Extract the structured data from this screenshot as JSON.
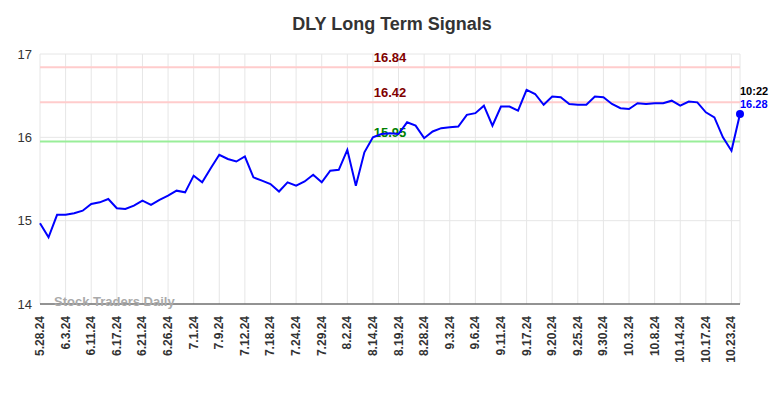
{
  "chart_data": {
    "type": "line",
    "title": "DLY Long Term Signals",
    "watermark": "Stock Traders Daily",
    "annotation": "10:22",
    "categories": [
      "5.28.24",
      null,
      null,
      "6.3.24",
      null,
      null,
      "6.11.24",
      null,
      null,
      "6.17.24",
      null,
      null,
      "6.21.24",
      null,
      null,
      "6.26.24",
      null,
      null,
      "7.1.24",
      null,
      null,
      "7.9.24",
      null,
      null,
      "7.12.24",
      null,
      null,
      "7.18.24",
      null,
      null,
      "7.24.24",
      null,
      null,
      "7.29.24",
      null,
      null,
      "8.2.24",
      null,
      null,
      "8.14.24",
      null,
      null,
      "8.19.24",
      null,
      null,
      "8.28.24",
      null,
      null,
      "9.3.24",
      null,
      null,
      "9.6.24",
      null,
      null,
      "9.11.24",
      null,
      null,
      "9.17.24",
      null,
      null,
      "9.20.24",
      null,
      null,
      "9.25.24",
      null,
      null,
      "9.30.24",
      null,
      null,
      "10.3.24",
      null,
      null,
      "10.8.24",
      null,
      null,
      "10.14.24",
      null,
      null,
      "10.17.24",
      null,
      null,
      "10.23.24",
      null
    ],
    "values": [
      14.97,
      14.8,
      15.07,
      15.07,
      15.09,
      15.12,
      15.2,
      15.22,
      15.26,
      15.15,
      15.14,
      15.18,
      15.24,
      15.19,
      15.25,
      15.3,
      15.36,
      15.34,
      15.54,
      15.46,
      15.63,
      15.79,
      15.74,
      15.71,
      15.77,
      15.52,
      15.48,
      15.44,
      15.35,
      15.46,
      15.42,
      15.47,
      15.55,
      15.46,
      15.6,
      15.61,
      15.85,
      15.42,
      15.82,
      16.0,
      16.04,
      16.05,
      16.04,
      16.18,
      16.14,
      15.99,
      16.07,
      16.11,
      16.12,
      16.13,
      16.27,
      16.29,
      16.38,
      16.14,
      16.37,
      16.37,
      16.32,
      16.57,
      16.52,
      16.39,
      16.49,
      16.48,
      16.4,
      16.39,
      16.39,
      16.49,
      16.48,
      16.4,
      16.35,
      16.34,
      16.41,
      16.4,
      16.41,
      16.41,
      16.44,
      16.38,
      16.43,
      16.42,
      16.3,
      16.24,
      16.0,
      15.84,
      16.28
    ],
    "color": "#0000ff",
    "marker": "last",
    "ylim": [
      14,
      17
    ],
    "yticks": [
      14,
      15,
      16,
      17
    ],
    "grid": true,
    "reference_lines": [
      {
        "value": 16.84,
        "color": "#ffcccc",
        "label_color": "#800000"
      },
      {
        "value": 16.42,
        "color": "#ffcccc",
        "label_color": "#800000"
      },
      {
        "value": 15.95,
        "color": "#99ee99",
        "label_color": "#008000"
      }
    ]
  }
}
